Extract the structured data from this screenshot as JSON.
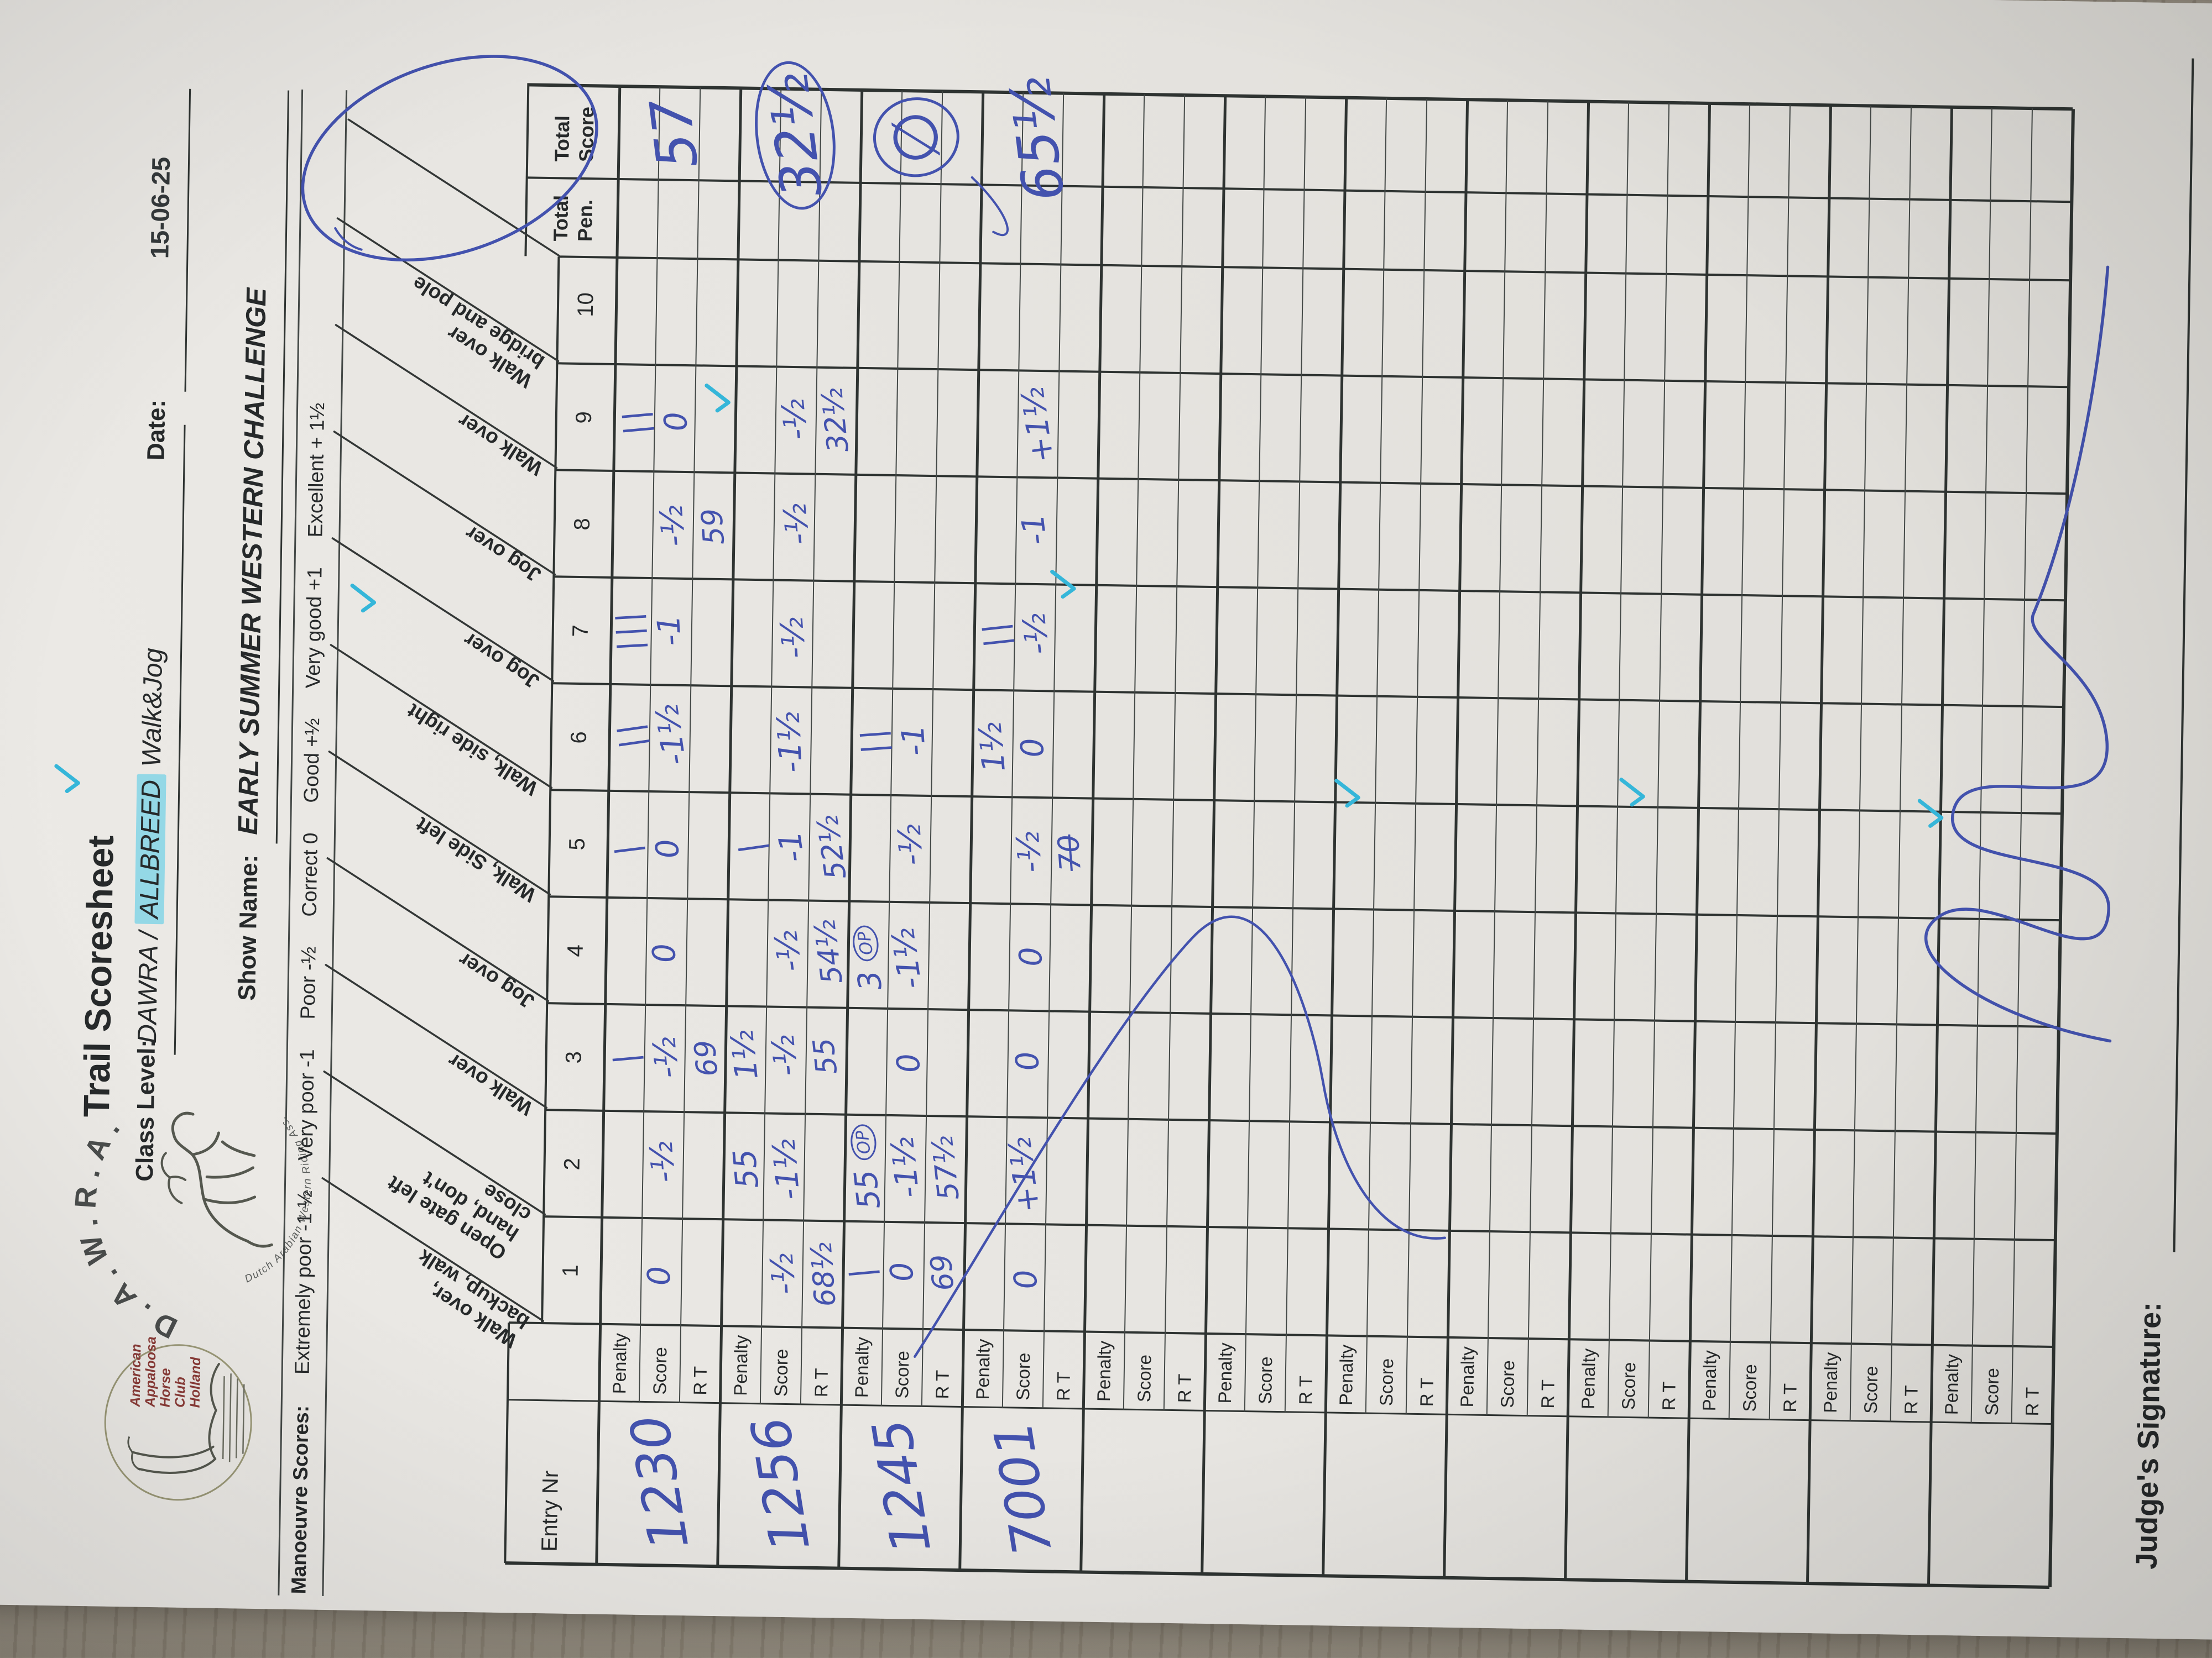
{
  "header": {
    "title": "Trail Scoresheet",
    "class_label": "Class Level:",
    "class_value_prefix": "DAWRA / ",
    "class_value_highlight": "ALLBREED",
    "class_value_suffix": " Walk&Jog",
    "date_label": "Date:",
    "date_value": "15-06-25",
    "show_label": "Show Name:",
    "show_value": "EARLY SUMMER WESTERN CHALLENGE",
    "legend_label": "Manoeuvre Scores:",
    "legend_items": [
      "Extremely poor -1 ½",
      "Very poor -1",
      "Poor -½",
      "Correct 0",
      "Good +½",
      "Very good +1",
      "Excellent + 1½"
    ]
  },
  "logos": {
    "appaloosa_lines": [
      "American",
      "Appaloosa",
      "Horse",
      "Club",
      "Holland"
    ],
    "dawra_arc": "D.A.W.R.A.",
    "dawra_sub": "Dutch Arabian Western Riding Ass."
  },
  "table": {
    "corner": "Entry Nr",
    "row_labels": [
      "Penalty",
      "Score",
      "R T"
    ],
    "numbers": [
      "1",
      "2",
      "3",
      "4",
      "5",
      "6",
      "7",
      "8",
      "9",
      "10"
    ],
    "total_pen_lines": [
      "Total",
      "Pen."
    ],
    "total_score_lines": [
      "Total",
      "Score"
    ],
    "obstacles": [
      {
        "num": "1",
        "lines": [
          "Walk over,",
          "backup, walk"
        ]
      },
      {
        "num": "2",
        "lines": [
          "Open gate left",
          "hand, don't",
          "close"
        ]
      },
      {
        "num": "3",
        "lines": [
          "Walk over"
        ]
      },
      {
        "num": "4",
        "lines": [
          "Jog over"
        ]
      },
      {
        "num": "5",
        "lines": [
          "Walk, Side left"
        ]
      },
      {
        "num": "6",
        "lines": [
          "Walk, side right"
        ]
      },
      {
        "num": "7",
        "lines": [
          "Jog over"
        ]
      },
      {
        "num": "8",
        "lines": [
          "Jog over"
        ]
      },
      {
        "num": "9",
        "lines": [
          "Walk over"
        ]
      },
      {
        "num": "10",
        "lines": [
          "Walk over",
          "bridge and pole"
        ]
      }
    ],
    "groups": [
      {
        "entry": "1230",
        "pen": {
          "3": "|",
          "5": "|",
          "6": "||",
          "7": "|||",
          "9": "||"
        },
        "score": {
          "1": "0",
          "2": "-½",
          "3": "-½",
          "4": "0",
          "5": "0",
          "6": "-1½",
          "7": "-1",
          "8": "-½",
          "9": "0"
        },
        "rt": {
          "3": "69",
          "8": "59"
        },
        "total_pen": "",
        "total_score": "57",
        "total_circled": false
      },
      {
        "entry": "1256",
        "pen": {
          "2": "55",
          "3": "1½",
          "5": "|"
        },
        "score": {
          "1": "-½",
          "2": "-1½",
          "3": "-½",
          "4": "-½",
          "5": "-1",
          "6": "-1½",
          "7": "-½",
          "8": "-½",
          "9": "-½"
        },
        "rt": {
          "1": "68½",
          "3": "55",
          "4": "54½",
          "5": "52½",
          "9": "32½"
        },
        "total_pen": "",
        "total_score": "32½",
        "total_circled": true
      },
      {
        "entry": "1245",
        "pen": {
          "1": "|",
          "2": "55 (OP)",
          "4": "3 (OP)",
          "6": "||"
        },
        "score": {
          "1": "0",
          "2": "-1½",
          "3": "0",
          "4": "-1½",
          "5": "-½",
          "6": "-1"
        },
        "rt": {
          "1": "69",
          "2": "57½"
        },
        "total_pen": "",
        "total_score": "∅",
        "total_circled": true
      },
      {
        "entry": "7001",
        "pen": {
          "6": "1½",
          "7": "||"
        },
        "score": {
          "1": "0",
          "2": "+1½",
          "3": "0",
          "4": "0",
          "5": "-½",
          "6": "0",
          "7": "-½",
          "8": "-1",
          "9": "+1½"
        },
        "rt": {
          "5": "70"
        },
        "rt_strike": [
          "5"
        ],
        "total_pen": "",
        "total_score": "65½",
        "total_circled": false
      },
      {
        "entry": ""
      },
      {
        "entry": ""
      },
      {
        "entry": ""
      },
      {
        "entry": ""
      },
      {
        "entry": ""
      },
      {
        "entry": ""
      },
      {
        "entry": ""
      },
      {
        "entry": ""
      }
    ]
  },
  "annotations": {
    "obstacles_9_10_circled": true,
    "check_marks": [
      [
        1490,
        175
      ],
      [
        1825,
        705
      ],
      [
        2197,
        1340
      ],
      [
        1870,
        1970
      ],
      [
        1500,
        2490
      ],
      [
        1510,
        3005
      ],
      [
        1480,
        3545
      ]
    ],
    "has_sweep_stroke": true,
    "has_signature_scrawl": true
  },
  "footer": {
    "signature_label": "Judge's Signature:"
  }
}
